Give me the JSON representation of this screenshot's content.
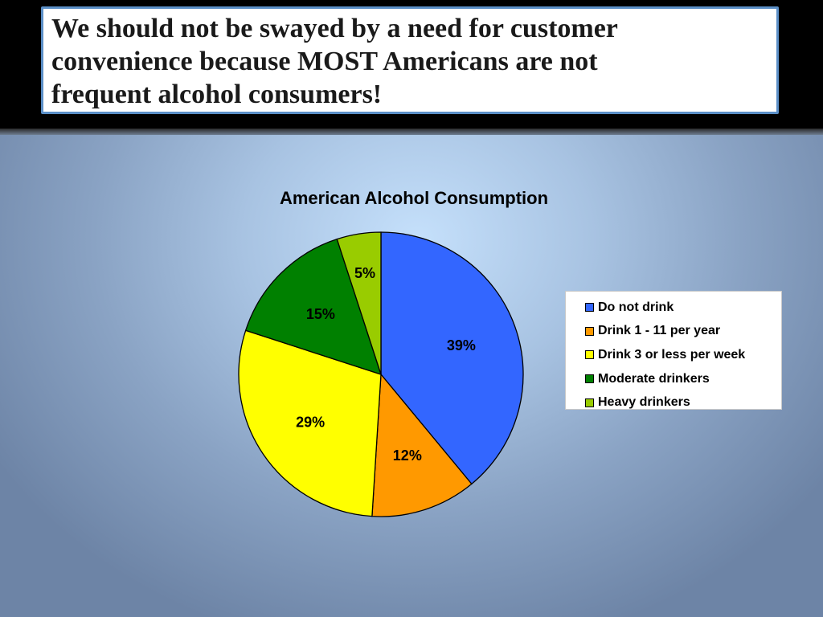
{
  "slide": {
    "title": "We should not be swayed by a need for customer\nconvenience  because MOST Americans are not\nfrequent alcohol consumers!"
  },
  "chart_data": {
    "type": "pie",
    "title": "American Alcohol Consumption",
    "categories": [
      "Do not drink",
      "Drink 1 - 11 per year",
      "Drink 3 or less per week",
      "Moderate drinkers",
      "Heavy drinkers"
    ],
    "values": [
      39,
      12,
      29,
      15,
      5
    ],
    "labels": [
      "39%",
      "12%",
      "29%",
      "15%",
      "5%"
    ],
    "colors": [
      "#3366ff",
      "#ff9900",
      "#ffff00",
      "#008000",
      "#99cc00"
    ],
    "legend_position": "right"
  }
}
